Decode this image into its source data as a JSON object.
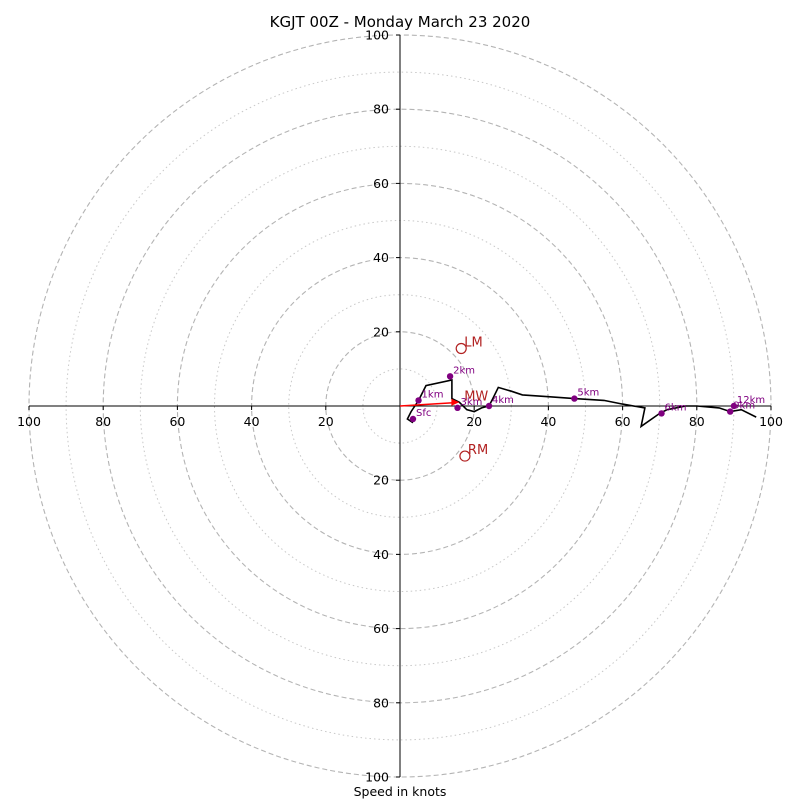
{
  "chart_data": {
    "type": "hodograph",
    "title": "KGJT 00Z - Monday March 23 2020",
    "xlabel": "Speed in knots",
    "range": [
      -100,
      100
    ],
    "ring_major": [
      20,
      40,
      60,
      80,
      100
    ],
    "ring_minor": [
      10,
      30,
      50,
      70,
      90
    ],
    "tick_labels_x": [
      "100",
      "80",
      "60",
      "40",
      "20",
      "20",
      "40",
      "60",
      "80",
      "100"
    ],
    "tick_values_x": [
      -100,
      -80,
      -60,
      -40,
      -20,
      20,
      40,
      60,
      80,
      100
    ],
    "tick_labels_y_top": [
      "20",
      "40",
      "60",
      "80",
      "100"
    ],
    "tick_values_y_top": [
      20,
      40,
      60,
      80,
      100
    ],
    "tick_labels_y_bottom": [
      "20",
      "40",
      "60",
      "80",
      "100"
    ],
    "tick_values_y_bottom": [
      -20,
      -40,
      -60,
      -80,
      -100
    ],
    "hodograph_line": {
      "color": "#000000",
      "points": [
        [
          3.5,
          -4.5
        ],
        [
          2,
          -3.5
        ],
        [
          3,
          -1.5
        ],
        [
          5,
          1.5
        ],
        [
          7,
          5.5
        ],
        [
          14,
          7
        ],
        [
          14,
          2
        ],
        [
          16,
          1
        ],
        [
          18,
          -1
        ],
        [
          20,
          -1.5
        ],
        [
          22,
          -0.5
        ],
        [
          24,
          0
        ],
        [
          25,
          2
        ],
        [
          26.5,
          5
        ],
        [
          30,
          4
        ],
        [
          33,
          3
        ],
        [
          40,
          2.5
        ],
        [
          47,
          2
        ],
        [
          55,
          1.5
        ],
        [
          60,
          0.5
        ],
        [
          66,
          -0.5
        ],
        [
          65,
          -5.5
        ],
        [
          70,
          -2
        ],
        [
          72,
          -1
        ],
        [
          77,
          0
        ],
        [
          80,
          0
        ],
        [
          86,
          -0.5
        ],
        [
          89,
          -1.5
        ],
        [
          92,
          -1
        ],
        [
          96,
          -3
        ]
      ]
    },
    "height_markers": [
      {
        "label": "Sfc",
        "u": 3.5,
        "v": -3.5
      },
      {
        "label": "1km",
        "u": 5,
        "v": 1.5
      },
      {
        "label": "2km",
        "u": 13.5,
        "v": 8
      },
      {
        "label": "3km",
        "u": 15.5,
        "v": -0.5
      },
      {
        "label": "4km",
        "u": 24,
        "v": 0
      },
      {
        "label": "5km",
        "u": 47,
        "v": 2
      },
      {
        "label": "6km",
        "u": 70.5,
        "v": -2
      },
      {
        "label": "9km",
        "u": 89,
        "v": -1.5
      },
      {
        "label": "12km",
        "u": 90,
        "v": 0
      }
    ],
    "marker_color": "#800080",
    "storm_motions": [
      {
        "label": "LM",
        "u": 16.5,
        "v": 15.5
      },
      {
        "label": "MW",
        "u": 16.5,
        "v": 1
      },
      {
        "label": "RM",
        "u": 17.5,
        "v": -13.5
      }
    ],
    "storm_motion_color": "#b22222",
    "shear_vector": {
      "from": [
        0,
        0
      ],
      "to": [
        16,
        1
      ],
      "color": "#ff0000"
    },
    "grid": true
  }
}
